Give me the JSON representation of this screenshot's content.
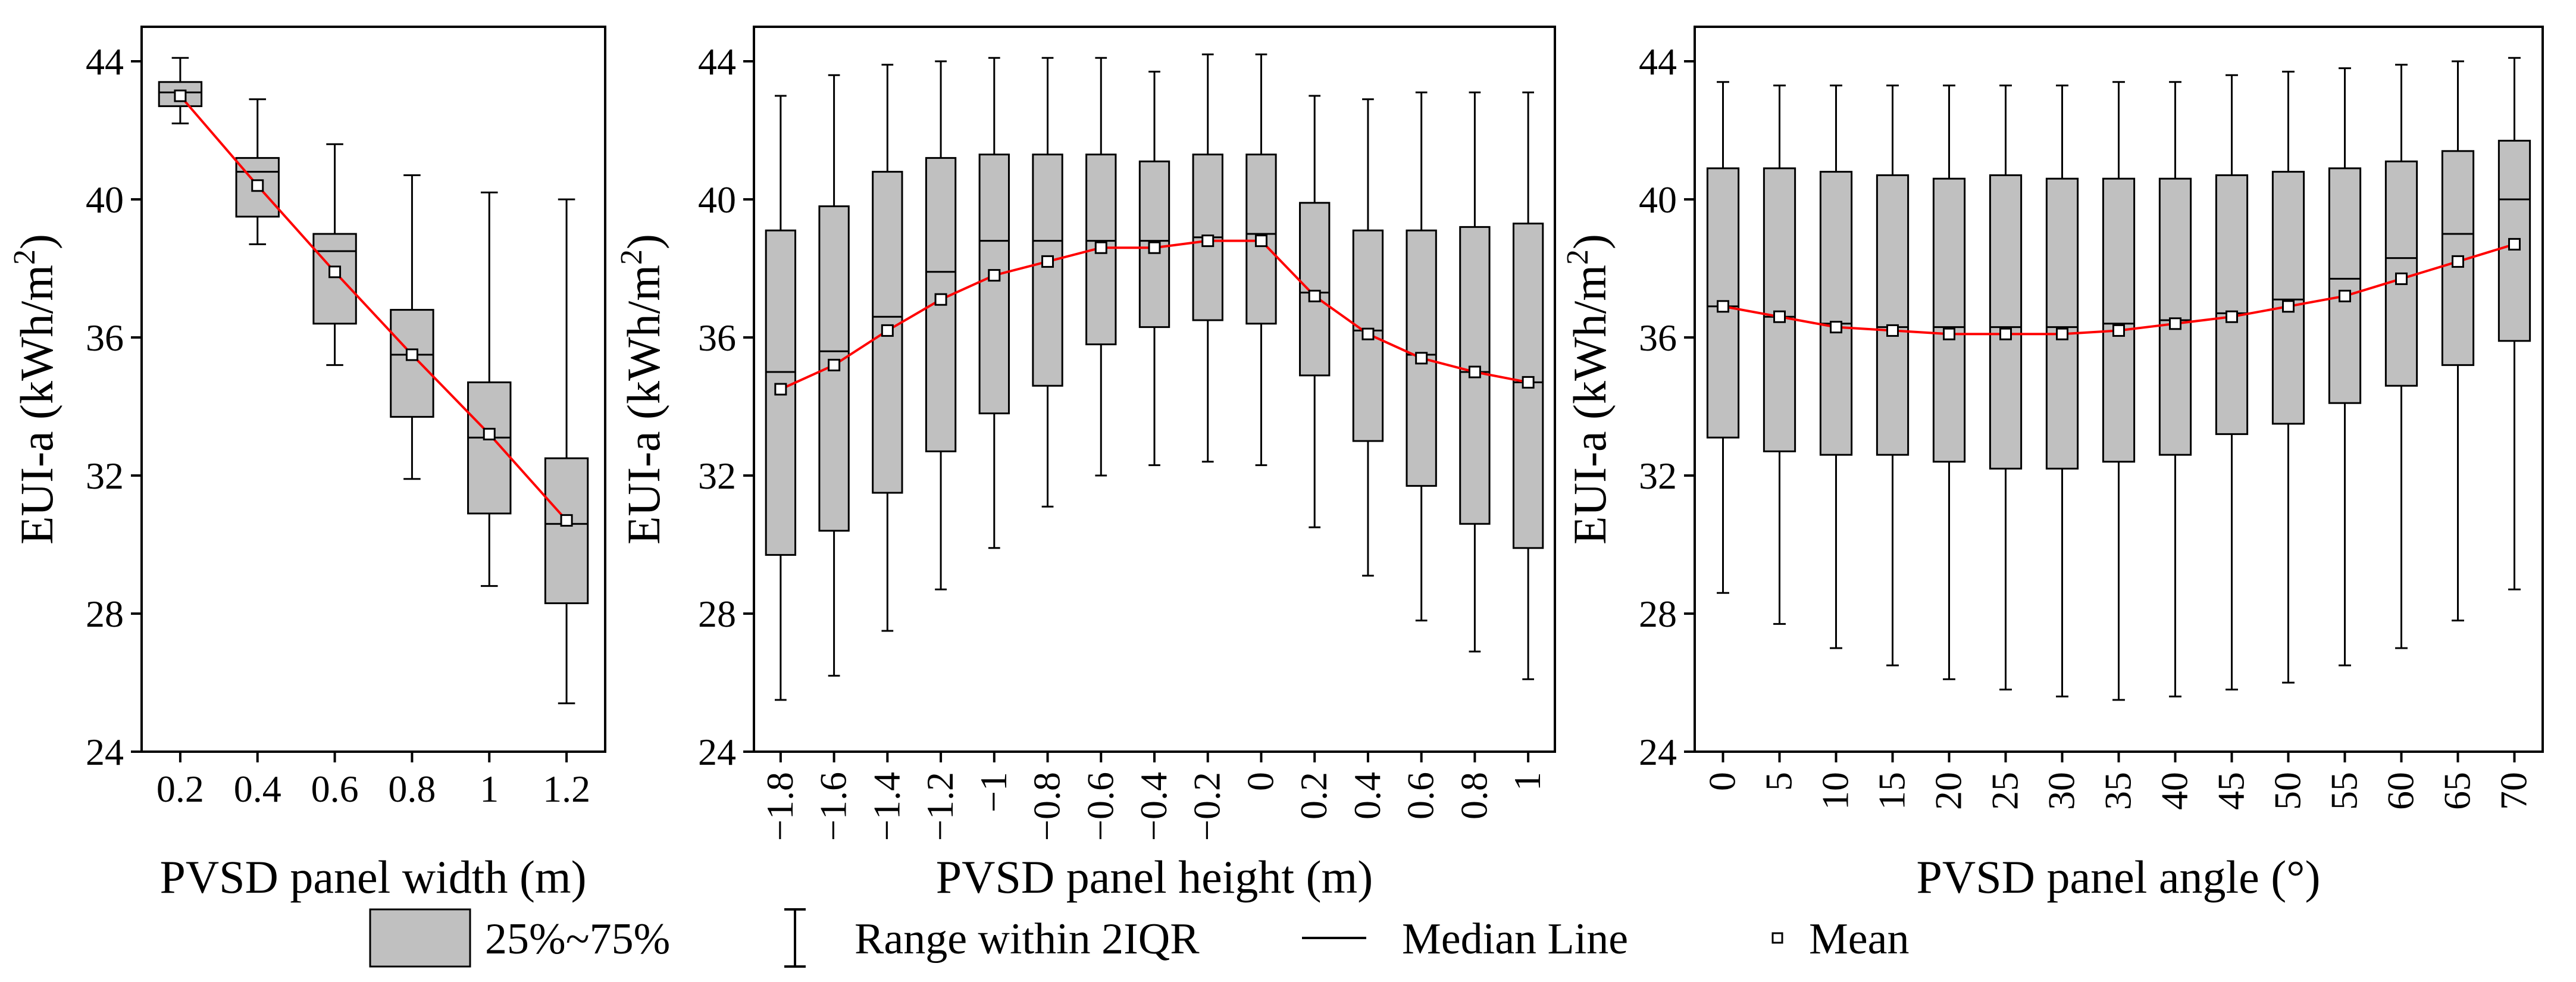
{
  "chart_data": [
    {
      "type": "box",
      "xlabel": "PVSD panel width (m)",
      "ylabel": "EUI-a (kWh/m²)",
      "ylabel_base": "EUI-a (kWh/m",
      "ylabel_sup": "2",
      "ylabel_end": ")",
      "ylim": [
        24,
        45
      ],
      "yticks": [
        24,
        28,
        32,
        36,
        40,
        44
      ],
      "categories": [
        "0.2",
        "0.4",
        "0.6",
        "0.8",
        "1",
        "1.2"
      ],
      "boxes": [
        {
          "whisker_low": 42.2,
          "q1": 42.7,
          "median": 43.1,
          "q3": 43.4,
          "whisker_high": 44.1,
          "mean": 43.0
        },
        {
          "whisker_low": 38.7,
          "q1": 39.5,
          "median": 40.8,
          "q3": 41.2,
          "whisker_high": 42.9,
          "mean": 40.4
        },
        {
          "whisker_low": 35.2,
          "q1": 36.4,
          "median": 38.5,
          "q3": 39.0,
          "whisker_high": 41.6,
          "mean": 37.9
        },
        {
          "whisker_low": 31.9,
          "q1": 33.7,
          "median": 35.5,
          "q3": 36.8,
          "whisker_high": 40.7,
          "mean": 35.5
        },
        {
          "whisker_low": 28.8,
          "q1": 30.9,
          "median": 33.1,
          "q3": 34.7,
          "whisker_high": 40.2,
          "mean": 33.2
        },
        {
          "whisker_low": 25.4,
          "q1": 28.3,
          "median": 30.6,
          "q3": 32.5,
          "whisker_high": 40.0,
          "mean": 30.7
        }
      ]
    },
    {
      "type": "box",
      "xlabel": "PVSD panel height (m)",
      "ylabel": "EUI-a (kWh/m²)",
      "ylabel_base": "EUI-a (kWh/m",
      "ylabel_sup": "2",
      "ylabel_end": ")",
      "ylim": [
        24,
        45
      ],
      "yticks": [
        24,
        28,
        32,
        36,
        40,
        44
      ],
      "categories": [
        "−1.8",
        "−1.6",
        "−1.4",
        "−1.2",
        "−1",
        "−0.8",
        "−0.6",
        "−0.4",
        "−0.2",
        "0",
        "0.2",
        "0.4",
        "0.6",
        "0.8",
        "1"
      ],
      "boxes": [
        {
          "whisker_low": 25.5,
          "q1": 29.7,
          "median": 35.0,
          "q3": 39.1,
          "whisker_high": 43.0,
          "mean": 34.5
        },
        {
          "whisker_low": 26.2,
          "q1": 30.4,
          "median": 35.6,
          "q3": 39.8,
          "whisker_high": 43.6,
          "mean": 35.2
        },
        {
          "whisker_low": 27.5,
          "q1": 31.5,
          "median": 36.6,
          "q3": 40.8,
          "whisker_high": 43.9,
          "mean": 36.2
        },
        {
          "whisker_low": 28.7,
          "q1": 32.7,
          "median": 37.9,
          "q3": 41.2,
          "whisker_high": 44.0,
          "mean": 37.1
        },
        {
          "whisker_low": 29.9,
          "q1": 33.8,
          "median": 38.8,
          "q3": 41.3,
          "whisker_high": 44.1,
          "mean": 37.8
        },
        {
          "whisker_low": 31.1,
          "q1": 34.6,
          "median": 38.8,
          "q3": 41.3,
          "whisker_high": 44.1,
          "mean": 38.2
        },
        {
          "whisker_low": 32.0,
          "q1": 35.8,
          "median": 38.8,
          "q3": 41.3,
          "whisker_high": 44.1,
          "mean": 38.6
        },
        {
          "whisker_low": 32.3,
          "q1": 36.3,
          "median": 38.8,
          "q3": 41.1,
          "whisker_high": 43.7,
          "mean": 38.6
        },
        {
          "whisker_low": 32.4,
          "q1": 36.5,
          "median": 38.9,
          "q3": 41.3,
          "whisker_high": 44.2,
          "mean": 38.8
        },
        {
          "whisker_low": 32.3,
          "q1": 36.4,
          "median": 39.0,
          "q3": 41.3,
          "whisker_high": 44.2,
          "mean": 38.8
        },
        {
          "whisker_low": 30.5,
          "q1": 34.9,
          "median": 37.3,
          "q3": 39.9,
          "whisker_high": 43.0,
          "mean": 37.2
        },
        {
          "whisker_low": 29.1,
          "q1": 33.0,
          "median": 36.2,
          "q3": 39.1,
          "whisker_high": 42.9,
          "mean": 36.1
        },
        {
          "whisker_low": 27.8,
          "q1": 31.7,
          "median": 35.5,
          "q3": 39.1,
          "whisker_high": 43.1,
          "mean": 35.4
        },
        {
          "whisker_low": 26.9,
          "q1": 30.6,
          "median": 35.0,
          "q3": 39.2,
          "whisker_high": 43.1,
          "mean": 35.0
        },
        {
          "whisker_low": 26.1,
          "q1": 29.9,
          "median": 34.7,
          "q3": 39.3,
          "whisker_high": 43.1,
          "mean": 34.7
        }
      ]
    },
    {
      "type": "box",
      "xlabel": "PVSD panel angle (°)",
      "ylabel": "EUI-a (kWh/m²)",
      "ylabel_base": "EUI-a (kWh/m",
      "ylabel_sup": "2",
      "ylabel_end": ")",
      "ylim": [
        24,
        45
      ],
      "yticks": [
        24,
        28,
        32,
        36,
        40,
        44
      ],
      "categories": [
        "0",
        "5",
        "10",
        "15",
        "20",
        "25",
        "30",
        "35",
        "40",
        "45",
        "50",
        "55",
        "60",
        "65",
        "70"
      ],
      "boxes": [
        {
          "whisker_low": 28.6,
          "q1": 33.1,
          "median": 36.9,
          "q3": 40.9,
          "whisker_high": 43.4,
          "mean": 36.9
        },
        {
          "whisker_low": 27.7,
          "q1": 32.7,
          "median": 36.6,
          "q3": 40.9,
          "whisker_high": 43.3,
          "mean": 36.6
        },
        {
          "whisker_low": 27.0,
          "q1": 32.6,
          "median": 36.4,
          "q3": 40.8,
          "whisker_high": 43.3,
          "mean": 36.3
        },
        {
          "whisker_low": 26.5,
          "q1": 32.6,
          "median": 36.3,
          "q3": 40.7,
          "whisker_high": 43.3,
          "mean": 36.2
        },
        {
          "whisker_low": 26.1,
          "q1": 32.4,
          "median": 36.3,
          "q3": 40.6,
          "whisker_high": 43.3,
          "mean": 36.1
        },
        {
          "whisker_low": 25.8,
          "q1": 32.2,
          "median": 36.3,
          "q3": 40.7,
          "whisker_high": 43.3,
          "mean": 36.1
        },
        {
          "whisker_low": 25.6,
          "q1": 32.2,
          "median": 36.3,
          "q3": 40.6,
          "whisker_high": 43.3,
          "mean": 36.1
        },
        {
          "whisker_low": 25.5,
          "q1": 32.4,
          "median": 36.4,
          "q3": 40.6,
          "whisker_high": 43.4,
          "mean": 36.2
        },
        {
          "whisker_low": 25.6,
          "q1": 32.6,
          "median": 36.5,
          "q3": 40.6,
          "whisker_high": 43.4,
          "mean": 36.4
        },
        {
          "whisker_low": 25.8,
          "q1": 33.2,
          "median": 36.7,
          "q3": 40.7,
          "whisker_high": 43.6,
          "mean": 36.6
        },
        {
          "whisker_low": 26.0,
          "q1": 33.5,
          "median": 37.1,
          "q3": 40.8,
          "whisker_high": 43.7,
          "mean": 36.9
        },
        {
          "whisker_low": 26.5,
          "q1": 34.1,
          "median": 37.7,
          "q3": 40.9,
          "whisker_high": 43.8,
          "mean": 37.2
        },
        {
          "whisker_low": 27.0,
          "q1": 34.6,
          "median": 38.3,
          "q3": 41.1,
          "whisker_high": 43.9,
          "mean": 37.7
        },
        {
          "whisker_low": 27.8,
          "q1": 35.2,
          "median": 39.0,
          "q3": 41.4,
          "whisker_high": 44.0,
          "mean": 38.2
        },
        {
          "whisker_low": 28.7,
          "q1": 35.9,
          "median": 40.0,
          "q3": 41.7,
          "whisker_high": 44.1,
          "mean": 38.7
        }
      ]
    }
  ],
  "legend": {
    "box_label": "25%~75%",
    "range_label": "Range within 2IQR",
    "median_label": "Median Line",
    "mean_label": "Mean"
  },
  "colors": {
    "box_fill": "#c0c0c0",
    "mean_line": "#ff0000",
    "outline": "#000000"
  }
}
